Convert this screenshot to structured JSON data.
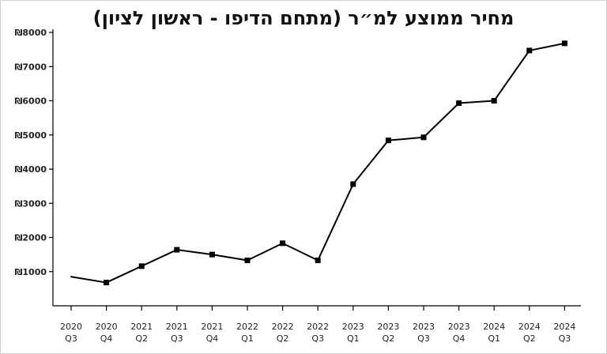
{
  "chart_data": {
    "type": "line",
    "title": "מחיר ממוצע למ״ר (מתחם הדיפו - ראשון לציון)",
    "xlabel": "",
    "ylabel": "",
    "currency_symbol": "₪",
    "ylim": [
      0,
      8000
    ],
    "yticks": [
      1000,
      2000,
      3000,
      4000,
      5000,
      6000,
      7000,
      8000
    ],
    "ytick_labels": [
      "₪1000",
      "₪2000",
      "₪3000",
      "₪4000",
      "₪5000",
      "₪6000",
      "₪7000",
      "₪8000"
    ],
    "grid": false,
    "legend": "none",
    "categories": [
      {
        "year": "2020",
        "quarter": "Q3"
      },
      {
        "year": "2020",
        "quarter": "Q4"
      },
      {
        "year": "2021",
        "quarter": "Q2"
      },
      {
        "year": "2021",
        "quarter": "Q3"
      },
      {
        "year": "2021",
        "quarter": "Q4"
      },
      {
        "year": "2022",
        "quarter": "Q1"
      },
      {
        "year": "2022",
        "quarter": "Q2"
      },
      {
        "year": "2022",
        "quarter": "Q3"
      },
      {
        "year": "2023",
        "quarter": "Q1"
      },
      {
        "year": "2023",
        "quarter": "Q2"
      },
      {
        "year": "2023",
        "quarter": "Q3"
      },
      {
        "year": "2023",
        "quarter": "Q4"
      },
      {
        "year": "2024",
        "quarter": "Q1"
      },
      {
        "year": "2024",
        "quarter": "Q2"
      },
      {
        "year": "2024",
        "quarter": "Q3"
      }
    ],
    "series": [
      {
        "values": [
          850,
          680,
          1160,
          1640,
          1500,
          1330,
          1830,
          1330,
          3560,
          4840,
          4930,
          5930,
          6000,
          7470,
          7680
        ],
        "markers": [
          false,
          true,
          true,
          true,
          true,
          true,
          true,
          true,
          true,
          true,
          true,
          true,
          true,
          true,
          true
        ],
        "color": "#000000"
      }
    ]
  }
}
